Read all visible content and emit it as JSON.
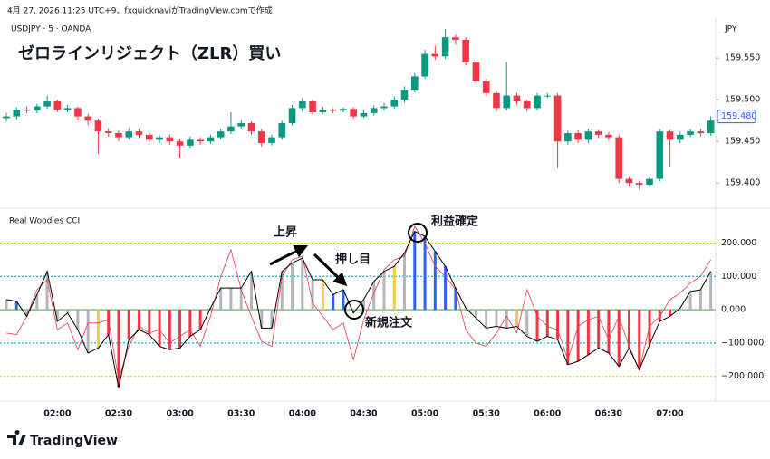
{
  "header": {
    "attribution": "4月 27, 2026 11:25 UTC+9、fxquicknaviがTradingView.comで作成"
  },
  "footer": {
    "logo": "TradingView"
  },
  "chart_data": [
    {
      "type": "candlestick",
      "title": "ゼロラインリジェクト（ZLR）買い",
      "subtitle": "USDJPY · 5 · OANDA",
      "y_axis_label": "JPY",
      "up_color": "#089981",
      "down_color": "#f23645",
      "categories": [
        null,
        null,
        null,
        null,
        null,
        "02:00",
        null,
        null,
        null,
        null,
        null,
        "02:30",
        null,
        null,
        null,
        null,
        null,
        "03:00",
        null,
        null,
        null,
        null,
        null,
        "03:30",
        null,
        null,
        null,
        null,
        null,
        "04:00",
        null,
        null,
        null,
        null,
        null,
        "04:30",
        null,
        null,
        null,
        null,
        null,
        "05:00",
        null,
        null,
        null,
        null,
        null,
        "05:30",
        null,
        null,
        null,
        null,
        null,
        "06:00",
        null,
        null,
        null,
        null,
        null,
        "06:30",
        null,
        null,
        null,
        null,
        null,
        "07:00",
        null,
        null,
        null,
        null
      ],
      "open": [
        159.478,
        159.48,
        159.488,
        159.487,
        159.492,
        159.498,
        159.488,
        159.49,
        159.48,
        159.475,
        159.462,
        159.46,
        159.455,
        159.462,
        159.458,
        159.452,
        159.455,
        159.45,
        159.445,
        159.452,
        159.45,
        159.455,
        159.462,
        159.468,
        159.472,
        159.462,
        159.448,
        159.455,
        159.472,
        159.49,
        159.498,
        159.485,
        159.488,
        159.487,
        159.489,
        159.48,
        159.484,
        159.49,
        159.492,
        159.5,
        159.512,
        159.528,
        159.555,
        159.552,
        159.575,
        159.572,
        159.545,
        159.522,
        159.508,
        159.49,
        159.505,
        159.498,
        159.49,
        159.505,
        159.505,
        159.45,
        159.46,
        159.452,
        159.462,
        159.458,
        159.455,
        159.405,
        159.4,
        159.398,
        159.405,
        159.462,
        159.452,
        159.458,
        159.462,
        159.46
      ],
      "high": [
        159.484,
        159.491,
        159.492,
        159.495,
        159.505,
        159.5,
        159.494,
        159.492,
        159.483,
        159.477,
        159.466,
        159.463,
        159.466,
        159.465,
        159.461,
        159.458,
        159.458,
        159.453,
        159.456,
        159.455,
        159.458,
        159.465,
        159.485,
        159.476,
        159.474,
        159.465,
        159.458,
        159.475,
        159.494,
        159.502,
        159.5,
        159.491,
        159.49,
        159.491,
        159.491,
        159.487,
        159.493,
        159.496,
        159.504,
        159.516,
        159.532,
        159.56,
        159.565,
        159.585,
        159.578,
        159.575,
        159.548,
        159.525,
        159.511,
        159.545,
        159.508,
        159.5,
        159.508,
        159.508,
        159.508,
        159.463,
        159.463,
        159.465,
        159.464,
        159.461,
        159.458,
        159.408,
        159.403,
        159.408,
        159.465,
        159.464,
        159.462,
        159.465,
        159.465,
        159.48
      ],
      "low": [
        159.474,
        159.477,
        159.484,
        159.484,
        159.489,
        159.485,
        159.485,
        159.476,
        159.47,
        159.435,
        159.456,
        159.45,
        159.452,
        159.454,
        159.449,
        159.448,
        159.446,
        159.43,
        159.441,
        159.446,
        159.447,
        159.452,
        159.459,
        159.465,
        159.458,
        159.444,
        159.445,
        159.452,
        159.469,
        159.486,
        159.482,
        159.483,
        159.484,
        159.485,
        159.477,
        159.478,
        159.481,
        159.487,
        159.489,
        159.497,
        159.509,
        159.525,
        159.548,
        159.549,
        159.566,
        159.541,
        159.518,
        159.504,
        159.486,
        159.487,
        159.494,
        159.486,
        159.487,
        159.502,
        159.418,
        159.446,
        159.448,
        159.448,
        159.454,
        159.451,
        159.4,
        159.396,
        159.392,
        159.395,
        159.402,
        159.42,
        159.448,
        159.455,
        159.456,
        159.457
      ],
      "close": [
        159.48,
        159.488,
        159.487,
        159.492,
        159.498,
        159.488,
        159.49,
        159.48,
        159.475,
        159.462,
        159.46,
        159.455,
        159.462,
        159.458,
        159.452,
        159.455,
        159.45,
        159.445,
        159.452,
        159.45,
        159.455,
        159.462,
        159.468,
        159.472,
        159.462,
        159.448,
        159.455,
        159.472,
        159.49,
        159.498,
        159.485,
        159.488,
        159.487,
        159.489,
        159.48,
        159.484,
        159.49,
        159.492,
        159.5,
        159.512,
        159.528,
        159.555,
        159.552,
        159.575,
        159.572,
        159.545,
        159.522,
        159.508,
        159.49,
        159.505,
        159.498,
        159.49,
        159.505,
        159.505,
        159.45,
        159.46,
        159.452,
        159.462,
        159.458,
        159.455,
        159.405,
        159.4,
        159.398,
        159.405,
        159.462,
        159.452,
        159.458,
        159.462,
        159.46,
        159.475
      ],
      "ylim": [
        159.372,
        159.598
      ],
      "yticks": [
        {
          "value": 159.55,
          "label": "159.550"
        },
        {
          "value": 159.5,
          "label": "159.500"
        },
        {
          "value": 159.45,
          "label": "159.450"
        },
        {
          "value": 159.4,
          "label": "159.400"
        }
      ],
      "last_price": {
        "value": 159.48,
        "label": "159.480"
      },
      "last_price_color": "#2962ff"
    },
    {
      "type": "cci",
      "title": "Real Woodies CCI",
      "values": [
        30,
        25,
        -20,
        45,
        115,
        -35,
        -10,
        -60,
        -130,
        -115,
        -75,
        -235,
        -90,
        -60,
        -75,
        -110,
        -120,
        -115,
        -80,
        -60,
        5,
        65,
        65,
        65,
        115,
        -55,
        -55,
        115,
        140,
        155,
        90,
        90,
        45,
        60,
        -10,
        30,
        85,
        115,
        130,
        170,
        235,
        220,
        175,
        130,
        65,
        5,
        -25,
        -55,
        -50,
        -55,
        -50,
        -80,
        -95,
        -80,
        -90,
        -165,
        -155,
        -135,
        -115,
        -130,
        -170,
        -115,
        -180,
        -105,
        -35,
        -20,
        5,
        55,
        60,
        115
      ],
      "bar_colors": [
        "#b2b5be",
        "#2962ff",
        "#b2b5be",
        "#b2b5be",
        "#b2b5be",
        "#b2b5be",
        "#b2b5be",
        "#b2b5be",
        "#b2b5be",
        "#f7c948",
        "#f23645",
        "#f23645",
        "#f23645",
        "#f23645",
        "#f23645",
        "#f23645",
        "#f23645",
        "#f23645",
        "#f23645",
        "#f23645",
        "#b2b5be",
        "#b2b5be",
        "#b2b5be",
        "#b2b5be",
        "#b2b5be",
        "#b2b5be",
        "#b2b5be",
        "#b2b5be",
        "#b2b5be",
        "#b2b5be",
        "#b2b5be",
        "#f7c948",
        "#2962ff",
        "#2962ff",
        "#b2b5be",
        "#b2b5be",
        "#b2b5be",
        "#b2b5be",
        "#f7c948",
        "#b2b5be",
        "#2962ff",
        "#2962ff",
        "#2962ff",
        "#2962ff",
        "#2962ff",
        "#b2b5be",
        "#b2b5be",
        "#b2b5be",
        "#b2b5be",
        "#b2b5be",
        "#f7c948",
        "#b2b5be",
        "#f23645",
        "#f23645",
        "#f23645",
        "#f23645",
        "#f23645",
        "#f23645",
        "#f23645",
        "#f23645",
        "#f23645",
        "#f23645",
        "#f23645",
        "#f23645",
        "#f23645",
        "#f23645",
        "#b2b5be",
        "#b2b5be",
        "#b2b5be",
        "#b2b5be"
      ],
      "line_color": "#000000",
      "turbo_values": [
        -70,
        -75,
        -20,
        60,
        90,
        -60,
        -40,
        -120,
        -40,
        -40,
        -30,
        -210,
        -110,
        -50,
        -70,
        -60,
        -100,
        -80,
        -60,
        -110,
        -20,
        100,
        180,
        60,
        -20,
        -95,
        -110,
        100,
        150,
        160,
        20,
        -20,
        -60,
        -40,
        -150,
        -30,
        50,
        120,
        150,
        160,
        250,
        200,
        130,
        100,
        60,
        -60,
        -100,
        -110,
        -70,
        -20,
        -70,
        60,
        -20,
        -50,
        -60,
        -150,
        -50,
        -30,
        -20,
        -90,
        -20,
        -110,
        -180,
        -50,
        -20,
        30,
        50,
        80,
        100,
        150
      ],
      "turbo_color": "#f23645",
      "ylim": [
        -266,
        299
      ],
      "yticks": [
        {
          "value": 200,
          "label": "200.000"
        },
        {
          "value": 100,
          "label": "100.000"
        },
        {
          "value": 0,
          "label": "0.000"
        },
        {
          "value": -100,
          "label": "−100.000"
        },
        {
          "value": -200,
          "label": "−200.000"
        }
      ],
      "annotations": [
        {
          "text": "上昇"
        },
        {
          "text": "押し目"
        },
        {
          "text": "新規注文"
        },
        {
          "text": "利益確定"
        }
      ]
    }
  ]
}
